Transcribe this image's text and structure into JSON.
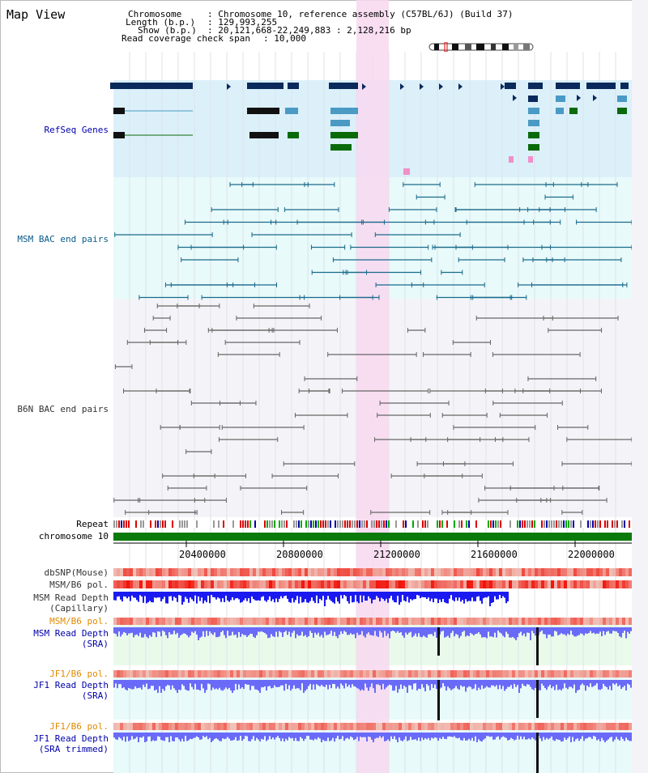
{
  "panel": {
    "title": "Map View"
  },
  "info": {
    "chromosome_key": "Chromosome",
    "chromosome_val": ": Chromosome 10, reference assembly (C57BL/6J) (Build 37)",
    "length_key": "Length (b.p.)",
    "length_val": ": 129,993,255",
    "show_key": "Show (b.p.)",
    "show_val": ": 20,121,668-22,249,883 : 2,128,216 bp",
    "coverage_key": "Read coverage check span",
    "coverage_val": ": 10,000"
  },
  "tracks": {
    "refseq": "RefSeq Genes",
    "msm_bac": "MSM BAC end pairs",
    "b6n_bac": "B6N BAC end pairs",
    "repeat": "Repeat",
    "chromosome": "chromosome 10",
    "dbsnp": "dbSNP(Mouse)",
    "msm_b6_pol": "MSM/B6 pol.",
    "msm_depth_cap_1": "MSM Read Depth",
    "msm_depth_cap_2": "(Capillary)",
    "msm_b6_pol_2": "MSM/B6 pol.",
    "msm_depth_sra_1": "MSM Read Depth",
    "msm_depth_sra_2": "(SRA)",
    "jf1_pol_1": "JF1/B6 pol.",
    "jf1_depth_sra_1": "JF1 Read Depth",
    "jf1_depth_sra_2": "(SRA)",
    "jf1_pol_2": "JF1/B6 pol.",
    "jf1_depth_trim_1": "JF1 Read Depth",
    "jf1_depth_trim_2": "(SRA trimmed)"
  },
  "axis": {
    "ticks": [
      "20400000",
      "20800000",
      "21200000",
      "21600000",
      "22000000"
    ]
  },
  "colors": {
    "refseq_dark": "#0a2a5c",
    "refseq_light": "#4a9ac4",
    "refseq_green": "#0a6a0a",
    "refseq_bg": "#dcf0fa",
    "bac_bg": "#e8fafa",
    "msm_bac": "#1a6a8a",
    "b6n_bac": "#666666",
    "highlight": "#f8d8f0",
    "chromosome": "#0a7a0a",
    "msm_label": "#0a5a8a",
    "blue_label": "#0000aa",
    "orange_label": "#e08a00"
  }
}
